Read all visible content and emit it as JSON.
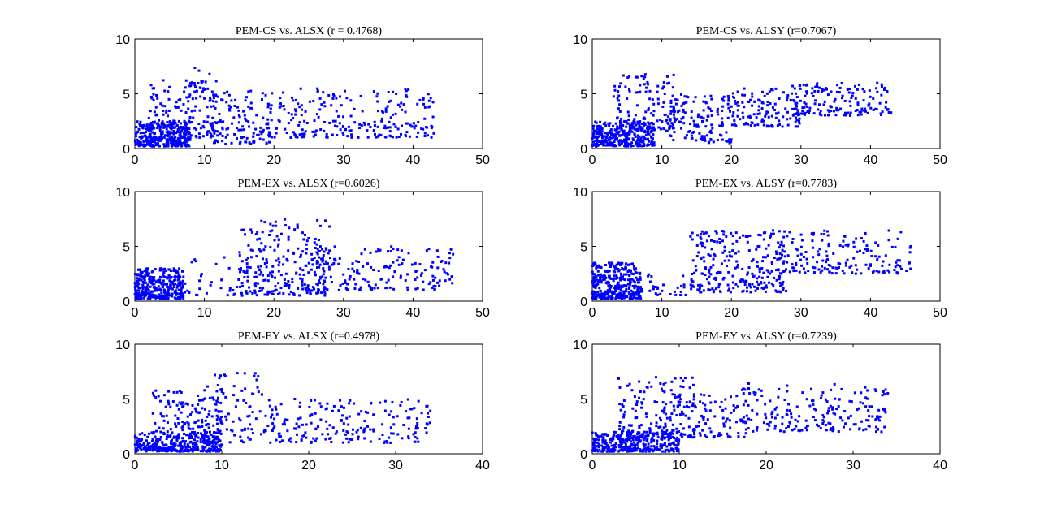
{
  "figure": {
    "background": "#ffffff",
    "marker_color": "#0000ff",
    "marker": "dot"
  },
  "chart_data": [
    {
      "type": "scatter",
      "title": "PEM-CS vs. ALSX (r = 0.4768)",
      "xlim": [
        0,
        50
      ],
      "ylim": [
        0,
        10
      ],
      "xticks": [
        "0",
        "10",
        "20",
        "30",
        "40",
        "50"
      ],
      "yticks": [
        "0",
        "5",
        "10"
      ],
      "grid": false,
      "clusters": [
        {
          "x": [
            0,
            8
          ],
          "y": [
            0.2,
            2.5
          ],
          "n": 320
        },
        {
          "x": [
            2,
            12
          ],
          "y": [
            1,
            6.5
          ],
          "n": 150
        },
        {
          "x": [
            8,
            11
          ],
          "y": [
            4.5,
            7.5
          ],
          "n": 20
        },
        {
          "x": [
            11,
            20
          ],
          "y": [
            0.4,
            5.5
          ],
          "n": 130
        },
        {
          "x": [
            20,
            43
          ],
          "y": [
            1,
            5.5
          ],
          "n": 230
        }
      ]
    },
    {
      "type": "scatter",
      "title": "PEM-CS vs. ALSY (r=0.7067)",
      "xlim": [
        0,
        50
      ],
      "ylim": [
        0,
        10
      ],
      "xticks": [
        "0",
        "10",
        "20",
        "30",
        "40",
        "50"
      ],
      "yticks": [
        "0",
        "5",
        "10"
      ],
      "grid": false,
      "clusters": [
        {
          "x": [
            0,
            9
          ],
          "y": [
            0.2,
            2.5
          ],
          "n": 300
        },
        {
          "x": [
            3,
            12
          ],
          "y": [
            1.5,
            6.8
          ],
          "n": 130
        },
        {
          "x": [
            11,
            20
          ],
          "y": [
            0.5,
            5
          ],
          "n": 130
        },
        {
          "x": [
            20,
            30
          ],
          "y": [
            2,
            5.5
          ],
          "n": 120
        },
        {
          "x": [
            28,
            43
          ],
          "y": [
            3,
            6
          ],
          "n": 160
        }
      ]
    },
    {
      "type": "scatter",
      "title": "PEM-EX vs. ALSX (r=0.6026)",
      "xlim": [
        0,
        50
      ],
      "ylim": [
        0,
        10
      ],
      "xticks": [
        "0",
        "10",
        "20",
        "30",
        "40",
        "50"
      ],
      "yticks": [
        "0",
        "5",
        "10"
      ],
      "grid": false,
      "clusters": [
        {
          "x": [
            0,
            7
          ],
          "y": [
            0.2,
            3
          ],
          "n": 340
        },
        {
          "x": [
            7,
            15
          ],
          "y": [
            0.5,
            4
          ],
          "n": 30
        },
        {
          "x": [
            15,
            28
          ],
          "y": [
            0.5,
            7.5
          ],
          "n": 260
        },
        {
          "x": [
            26,
            46
          ],
          "y": [
            1,
            5
          ],
          "n": 170
        }
      ]
    },
    {
      "type": "scatter",
      "title": "PEM-EX vs. ALSY (r=0.7783)",
      "xlim": [
        0,
        50
      ],
      "ylim": [
        0,
        10
      ],
      "xticks": [
        "0",
        "10",
        "20",
        "30",
        "40",
        "50"
      ],
      "yticks": [
        "0",
        "5",
        "10"
      ],
      "grid": false,
      "clusters": [
        {
          "x": [
            0,
            7
          ],
          "y": [
            0.2,
            3.5
          ],
          "n": 340
        },
        {
          "x": [
            7,
            14
          ],
          "y": [
            0.5,
            2.5
          ],
          "n": 30
        },
        {
          "x": [
            14,
            28
          ],
          "y": [
            0.8,
            6.5
          ],
          "n": 260
        },
        {
          "x": [
            27,
            46
          ],
          "y": [
            2.5,
            6.5
          ],
          "n": 170
        }
      ]
    },
    {
      "type": "scatter",
      "title": "PEM-EY vs. ALSX (r=0.4978)",
      "xlim": [
        0,
        40
      ],
      "ylim": [
        0,
        10
      ],
      "xticks": [
        "0",
        "10",
        "20",
        "30",
        "40"
      ],
      "yticks": [
        "0",
        "5",
        "10"
      ],
      "grid": false,
      "clusters": [
        {
          "x": [
            0,
            10
          ],
          "y": [
            0.2,
            2
          ],
          "n": 340
        },
        {
          "x": [
            2,
            10
          ],
          "y": [
            1.5,
            6
          ],
          "n": 130
        },
        {
          "x": [
            8,
            15
          ],
          "y": [
            1,
            7.5
          ],
          "n": 90
        },
        {
          "x": [
            15,
            34
          ],
          "y": [
            1,
            5
          ],
          "n": 200
        }
      ]
    },
    {
      "type": "scatter",
      "title": "PEM-EY vs. ALSY (r=0.7239)",
      "xlim": [
        0,
        40
      ],
      "ylim": [
        0,
        10
      ],
      "xticks": [
        "0",
        "10",
        "20",
        "30",
        "40"
      ],
      "yticks": [
        "0",
        "5",
        "10"
      ],
      "grid": false,
      "clusters": [
        {
          "x": [
            0,
            10
          ],
          "y": [
            0.2,
            2
          ],
          "n": 330
        },
        {
          "x": [
            3,
            12
          ],
          "y": [
            1.5,
            7
          ],
          "n": 140
        },
        {
          "x": [
            8,
            18
          ],
          "y": [
            1.5,
            5.5
          ],
          "n": 110
        },
        {
          "x": [
            17,
            34
          ],
          "y": [
            2,
            6.5
          ],
          "n": 200
        }
      ]
    }
  ]
}
